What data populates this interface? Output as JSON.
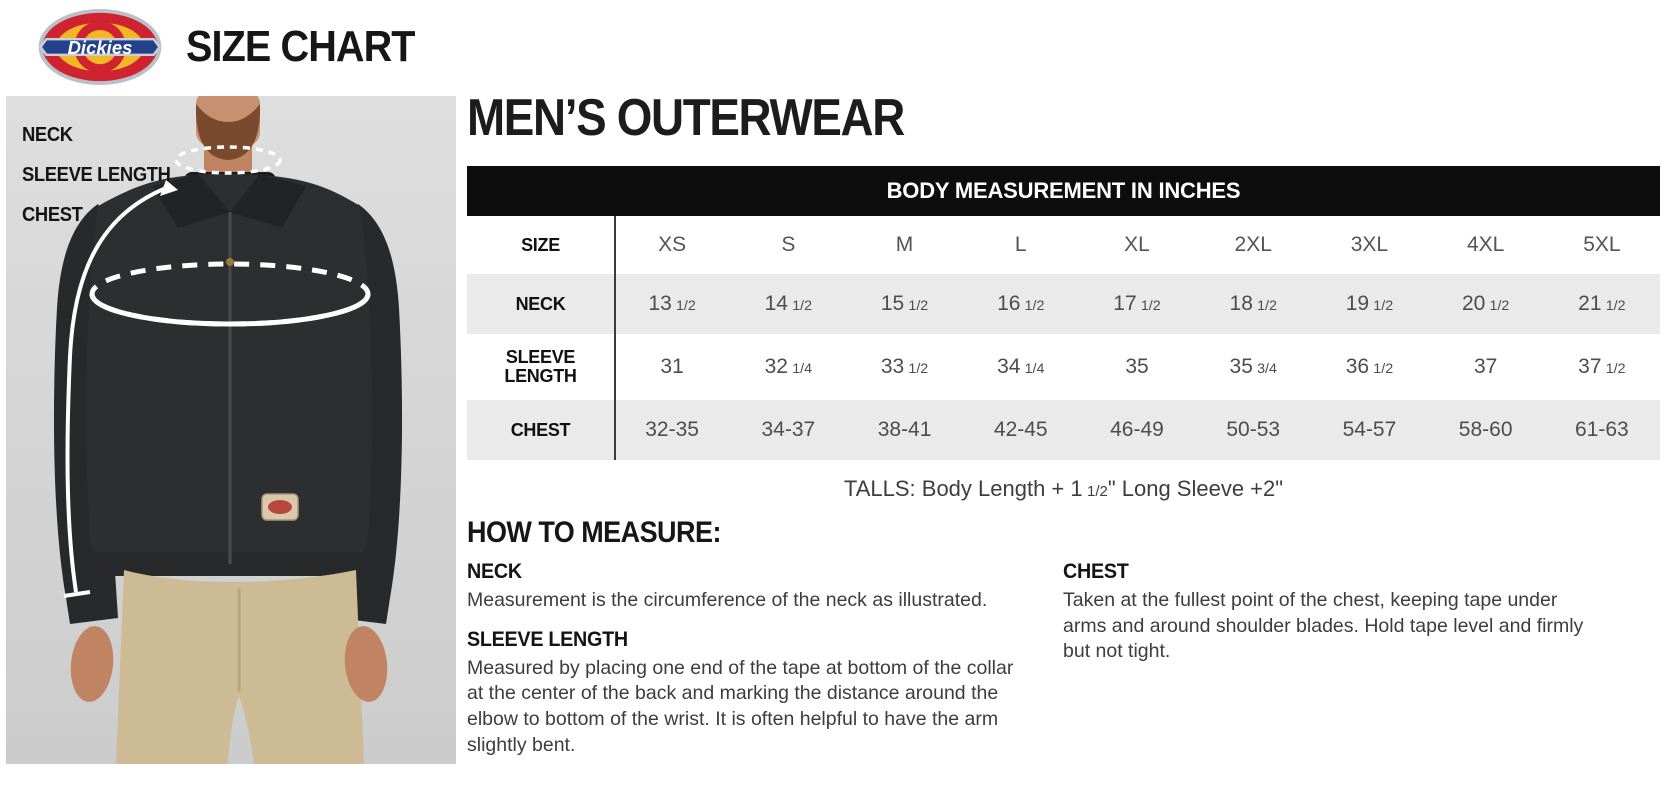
{
  "header": {
    "brand": "Dickies",
    "title": "SIZE CHART"
  },
  "photo": {
    "labels": [
      "NECK",
      "SLEEVE LENGTH",
      "CHEST"
    ]
  },
  "main": {
    "title": "MEN’S OUTERWEAR",
    "table": {
      "header_bar": "BODY MEASUREMENT IN INCHES",
      "size_label": "SIZE",
      "sizes": [
        "XS",
        "S",
        "M",
        "L",
        "XL",
        "2XL",
        "3XL",
        "4XL",
        "5XL"
      ],
      "rows": [
        {
          "label": "NECK",
          "values": [
            "13 1/2",
            "14 1/2",
            "15 1/2",
            "16 1/2",
            "17 1/2",
            "18 1/2",
            "19 1/2",
            "20 1/2",
            "21 1/2"
          ]
        },
        {
          "label": "SLEEVE LENGTH",
          "values": [
            "31",
            "32 1/4",
            "33 1/2",
            "34 1/4",
            "35",
            "35 3/4",
            "36 1/2",
            "37",
            "37 1/2"
          ]
        },
        {
          "label": "CHEST",
          "values": [
            "32-35",
            "34-37",
            "38-41",
            "42-45",
            "46-49",
            "50-53",
            "54-57",
            "58-60",
            "61-63"
          ]
        }
      ]
    },
    "talls_note": "TALLS: Body Length + 1 1/2\" Long Sleeve +2\"",
    "how_to_measure": {
      "title": "HOW TO MEASURE:",
      "sections": [
        {
          "label": "NECK",
          "text": "Measurement is the circumference of the neck as illustrated.",
          "column": "left"
        },
        {
          "label": "SLEEVE LENGTH",
          "text": "Measured by placing one end of the tape at bottom of the collar at the center of the back and marking the distance around the elbow to bottom of the wrist. It is often helpful to have the arm slightly bent.",
          "column": "left"
        },
        {
          "label": "CHEST",
          "text": "Taken at the fullest point of the chest, keeping tape under arms and around shoulder blades. Hold tape level and firmly but not tight.",
          "column": "right"
        }
      ]
    }
  },
  "colors": {
    "bar_bg": "#0d0d0d",
    "row_alt": "#eaeaea",
    "logo_red": "#cf2331",
    "logo_yellow": "#f2b724",
    "logo_blue": "#24418c",
    "photo_bg": "#d8d8d8",
    "jacket": "#2d2e30",
    "pants": "#cdbb95"
  }
}
